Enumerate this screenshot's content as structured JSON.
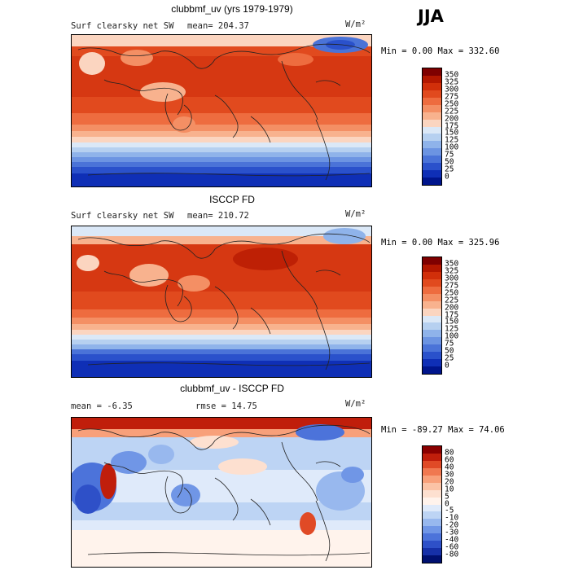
{
  "season": "JJA",
  "panels": [
    {
      "title": "clubbmf_uv (yrs 1979-1979)",
      "variable": "Surf clearsky net SW",
      "stat_left": "",
      "mean_text": "mean= 204.37",
      "units": "W/m²",
      "minmax": "Min =    0.00 Max = 332.60",
      "colorbar": {
        "labels": [
          "350",
          "325",
          "300",
          "275",
          "250",
          "225",
          "200",
          "175",
          "150",
          "125",
          "100",
          "75",
          "50",
          "25",
          "0"
        ],
        "colors": [
          "#7f0000",
          "#b31700",
          "#d12f0a",
          "#e14a1e",
          "#ee6c3f",
          "#f48f64",
          "#f8b28e",
          "#fbd5c0",
          "#dbe8f7",
          "#b6d0f0",
          "#8fb3ea",
          "#6c94e2",
          "#4a73d8",
          "#2a51cb",
          "#0f2fb6",
          "#00158c"
        ]
      }
    },
    {
      "title": "ISCCP FD",
      "variable": "Surf clearsky net SW",
      "stat_left": "",
      "mean_text": "mean= 210.72",
      "units": "W/m²",
      "minmax": "Min =    0.00 Max = 325.96",
      "colorbar": {
        "labels": [
          "350",
          "325",
          "300",
          "275",
          "250",
          "225",
          "200",
          "175",
          "150",
          "125",
          "100",
          "75",
          "50",
          "25",
          "0"
        ],
        "colors": [
          "#7f0000",
          "#b31700",
          "#d12f0a",
          "#e14a1e",
          "#ee6c3f",
          "#f48f64",
          "#f8b28e",
          "#fbd5c0",
          "#dbe8f7",
          "#b6d0f0",
          "#8fb3ea",
          "#6c94e2",
          "#4a73d8",
          "#2a51cb",
          "#0f2fb6",
          "#00158c"
        ]
      }
    },
    {
      "title": "clubbmf_uv - ISCCP FD",
      "variable": "",
      "stat_left": "mean =   -6.35",
      "mean_text": "rmse =  14.75",
      "units": "W/m²",
      "minmax": "Min = -89.27 Max =  74.06",
      "colorbar": {
        "labels": [
          "80",
          "60",
          "40",
          "30",
          "20",
          "10",
          "5",
          "0",
          "-5",
          "-10",
          "-20",
          "-30",
          "-40",
          "-60",
          "-80"
        ],
        "colors": [
          "#8a0000",
          "#c01e0b",
          "#e04a26",
          "#f07850",
          "#f8a07a",
          "#fbc3a6",
          "#fde0d0",
          "#fff3ec",
          "#dfeafa",
          "#bdd4f4",
          "#98b8ee",
          "#7096e6",
          "#4c73da",
          "#2e50c8",
          "#1630a8",
          "#001070"
        ]
      }
    }
  ]
}
